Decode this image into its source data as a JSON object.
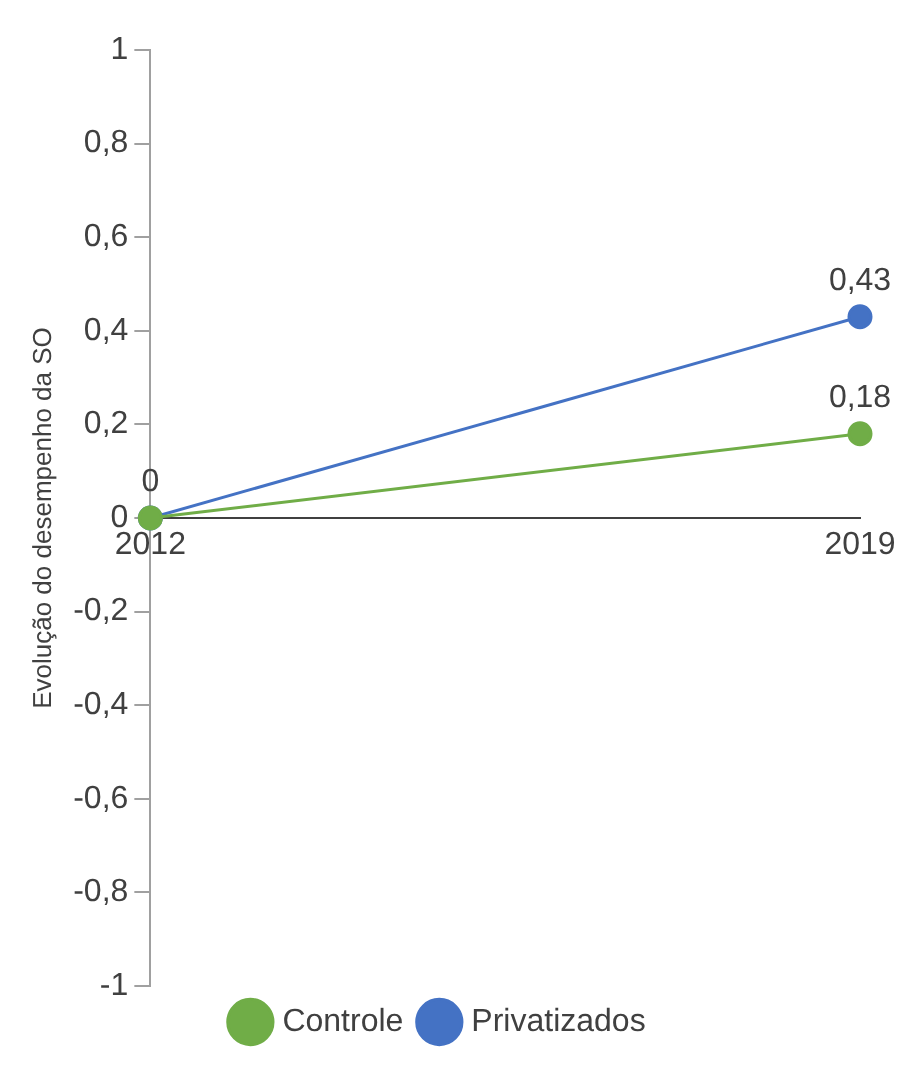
{
  "chart_data": {
    "type": "line",
    "ylabel": "Evolução do desempenho da SO",
    "categories": [
      "2012",
      "2019"
    ],
    "series": [
      {
        "name": "Controle",
        "color": "#70ad47",
        "values": [
          0,
          0.18
        ],
        "value_labels": [
          null,
          "0,18"
        ]
      },
      {
        "name": "Privatizados",
        "color": "#4472c4",
        "values": [
          0,
          0.43
        ],
        "value_labels": [
          "0",
          "0,43"
        ]
      }
    ],
    "ylim": [
      -1,
      1
    ],
    "yticks": [
      {
        "value": -1,
        "label": "-1"
      },
      {
        "value": -0.8,
        "label": "-0,8"
      },
      {
        "value": -0.6,
        "label": "-0,6"
      },
      {
        "value": -0.4,
        "label": "-0,4"
      },
      {
        "value": -0.2,
        "label": "-0,2"
      },
      0,
      {
        "value": 0.2,
        "label": "0,2"
      },
      {
        "value": 0.4,
        "label": "0,4"
      },
      {
        "value": 0.6,
        "label": "0,6"
      },
      {
        "value": 0.8,
        "label": "0,8"
      },
      1
    ],
    "grid": false,
    "legend": "bottom",
    "marker": "circle",
    "line_style": "solid"
  }
}
